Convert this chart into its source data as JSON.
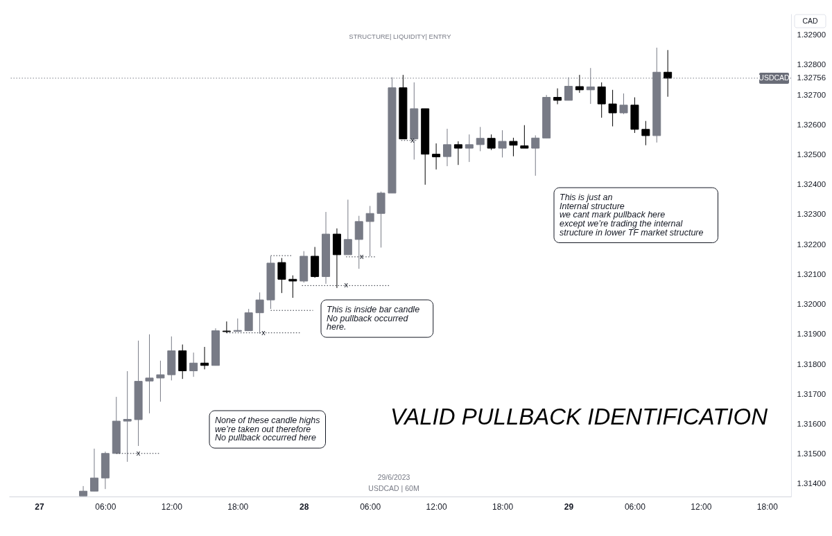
{
  "chart_data": {
    "type": "candlestick",
    "subtitle": "STRUCTURE| LIQUIDITY| ENTRY",
    "ylabel": "CAD",
    "xlim": [
      "2023-06-26T21:35",
      "2023-06-29T19:52"
    ],
    "ylim": [
      1.31358,
      1.32971
    ],
    "xticks": [
      {
        "value": "2023-06-27T00:00",
        "label": "27"
      },
      {
        "value": "2023-06-27T06:00",
        "label": "06:00"
      },
      {
        "value": "2023-06-27T12:00",
        "label": "12:00"
      },
      {
        "value": "2023-06-27T18:00",
        "label": "18:00"
      },
      {
        "value": "2023-06-28T00:00",
        "label": "28"
      },
      {
        "value": "2023-06-28T06:00",
        "label": "06:00"
      },
      {
        "value": "2023-06-28T12:00",
        "label": "12:00"
      },
      {
        "value": "2023-06-28T18:00",
        "label": "18:00"
      },
      {
        "value": "2023-06-29T00:00",
        "label": "29"
      },
      {
        "value": "2023-06-29T06:00",
        "label": "06:00"
      },
      {
        "value": "2023-06-29T12:00",
        "label": "12:00"
      },
      {
        "value": "2023-06-29T18:00",
        "label": "18:00"
      }
    ],
    "yticks": [
      {
        "value": 1.314,
        "label": "1.31400"
      },
      {
        "value": 1.315,
        "label": "1.31500"
      },
      {
        "value": 1.316,
        "label": "1.31600"
      },
      {
        "value": 1.317,
        "label": "1.31700"
      },
      {
        "value": 1.318,
        "label": "1.31800"
      },
      {
        "value": 1.319,
        "label": "1.31900"
      },
      {
        "value": 1.32,
        "label": "1.32000"
      },
      {
        "value": 1.321,
        "label": "1.32100"
      },
      {
        "value": 1.322,
        "label": "1.32200"
      },
      {
        "value": 1.323,
        "label": "1.32300"
      },
      {
        "value": 1.324,
        "label": "1.32400"
      },
      {
        "value": 1.325,
        "label": "1.32500"
      },
      {
        "value": 1.326,
        "label": "1.32600"
      },
      {
        "value": 1.327,
        "label": "1.32700"
      },
      1.32756,
      {
        "value": 1.328,
        "label": "1.32800"
      },
      {
        "value": 1.329,
        "label": "1.32900"
      }
    ],
    "series": [
      {
        "x": [
          "2023-06-27T04:00",
          "2023-06-27T05:00",
          "2023-06-27T06:00",
          "2023-06-27T07:00",
          "2023-06-27T08:00",
          "2023-06-27T09:00",
          "2023-06-27T10:00",
          "2023-06-27T11:00",
          "2023-06-27T12:00",
          "2023-06-27T13:00",
          "2023-06-27T14:00",
          "2023-06-27T15:00",
          "2023-06-27T16:00",
          "2023-06-27T17:00",
          "2023-06-27T18:00",
          "2023-06-27T19:00",
          "2023-06-27T20:00",
          "2023-06-27T21:00",
          "2023-06-27T22:00",
          "2023-06-27T23:00",
          "2023-06-28T00:00",
          "2023-06-28T01:00",
          "2023-06-28T02:00",
          "2023-06-28T03:00",
          "2023-06-28T04:00",
          "2023-06-28T05:00",
          "2023-06-28T06:00",
          "2023-06-28T07:00",
          "2023-06-28T08:00",
          "2023-06-28T09:00",
          "2023-06-28T10:00",
          "2023-06-28T11:00",
          "2023-06-28T12:00",
          "2023-06-28T13:00",
          "2023-06-28T14:00",
          "2023-06-28T15:00",
          "2023-06-28T16:00",
          "2023-06-28T17:00",
          "2023-06-28T18:00",
          "2023-06-28T19:00",
          "2023-06-28T20:00",
          "2023-06-28T21:00",
          "2023-06-28T22:00",
          "2023-06-28T23:00",
          "2023-06-29T00:00",
          "2023-06-29T01:00",
          "2023-06-29T02:00",
          "2023-06-29T03:00",
          "2023-06-29T04:00",
          "2023-06-29T05:00",
          "2023-06-29T06:00",
          "2023-06-29T07:00",
          "2023-06-29T08:00",
          "2023-06-29T09:00"
        ],
        "ohlc": [
          [
            1.3136,
            1.31393,
            1.3136,
            1.31376
          ],
          [
            1.31376,
            1.31518,
            1.31376,
            1.3142
          ],
          [
            1.3142,
            1.31508,
            1.31383,
            1.31502
          ],
          [
            1.31502,
            1.31691,
            1.31502,
            1.3161
          ],
          [
            1.3161,
            1.31777,
            1.31474,
            1.31616
          ],
          [
            1.31615,
            1.31879,
            1.31527,
            1.31743
          ],
          [
            1.31744,
            1.319,
            1.31636,
            1.31754
          ],
          [
            1.31754,
            1.31812,
            1.31675,
            1.31765
          ],
          [
            1.31765,
            1.31893,
            1.31746,
            1.31845
          ],
          [
            1.31845,
            1.31866,
            1.31751,
            1.31778
          ],
          [
            1.31778,
            1.31839,
            1.31758,
            1.31804
          ],
          [
            1.31804,
            1.31858,
            1.31783,
            1.31796
          ],
          [
            1.31796,
            1.3192,
            1.31796,
            1.31912
          ],
          [
            1.31911,
            1.31943,
            1.31904,
            1.31909
          ],
          [
            1.3191,
            1.31953,
            1.31909,
            1.31913
          ],
          [
            1.31912,
            1.31985,
            1.31912,
            1.31972
          ],
          [
            1.31972,
            1.3204,
            1.31902,
            1.32015
          ],
          [
            1.32015,
            1.32161,
            1.31985,
            1.32138
          ],
          [
            1.3214,
            1.32155,
            1.32038,
            1.32084
          ],
          [
            1.32084,
            1.32097,
            1.32022,
            1.32078
          ],
          [
            1.32078,
            1.32178,
            1.32073,
            1.32161
          ],
          [
            1.32161,
            1.32192,
            1.32089,
            1.32093
          ],
          [
            1.32093,
            1.32309,
            1.32069,
            1.32235
          ],
          [
            1.32235,
            1.32254,
            1.32055,
            1.32166
          ],
          [
            1.32166,
            1.3235,
            1.32166,
            1.32217
          ],
          [
            1.32217,
            1.32296,
            1.32119,
            1.32277
          ],
          [
            1.32277,
            1.32329,
            1.32161,
            1.32304
          ],
          [
            1.32304,
            1.32377,
            1.3219,
            1.32372
          ],
          [
            1.32372,
            1.32759,
            1.32372,
            1.32724
          ],
          [
            1.32724,
            1.32767,
            1.32553,
            1.32553
          ],
          [
            1.32553,
            1.32742,
            1.32484,
            1.32654
          ],
          [
            1.32654,
            1.32654,
            1.324,
            1.32502
          ],
          [
            1.32502,
            1.32538,
            1.32451,
            1.32493
          ],
          [
            1.32494,
            1.32587,
            1.32462,
            1.32534
          ],
          [
            1.32534,
            1.32545,
            1.32466,
            1.32522
          ],
          [
            1.32522,
            1.32568,
            1.32476,
            1.32534
          ],
          [
            1.32534,
            1.32593,
            1.32512,
            1.32555
          ],
          [
            1.32555,
            1.32568,
            1.32516,
            1.32522
          ],
          [
            1.32522,
            1.32582,
            1.32491,
            1.32545
          ],
          [
            1.32545,
            1.32557,
            1.32495,
            1.32532
          ],
          [
            1.3253,
            1.32599,
            1.32522,
            1.32522
          ],
          [
            1.32522,
            1.32565,
            1.3243,
            1.32556
          ],
          [
            1.32556,
            1.327,
            1.32556,
            1.32692
          ],
          [
            1.32692,
            1.32722,
            1.32669,
            1.32682
          ],
          [
            1.32682,
            1.32759,
            1.32682,
            1.32729
          ],
          [
            1.32728,
            1.32767,
            1.32707,
            1.32717
          ],
          [
            1.32717,
            1.3279,
            1.3267,
            1.32727
          ],
          [
            1.32727,
            1.32742,
            1.32624,
            1.3267
          ],
          [
            1.3267,
            1.32717,
            1.32595,
            1.3264
          ],
          [
            1.3264,
            1.32705,
            1.32636,
            1.32666
          ],
          [
            1.32666,
            1.32692,
            1.32573,
            1.32585
          ],
          [
            1.32585,
            1.32613,
            1.32532,
            1.32564
          ],
          [
            1.32564,
            1.32858,
            1.32541,
            1.32776
          ],
          [
            1.32776,
            1.3285,
            1.32694,
            1.32756
          ]
        ],
        "colors": [
          "#787b86",
          "#787b86",
          "#787b86",
          "#787b86",
          "#787b86",
          "#787b86",
          "#787b86",
          "#787b86",
          "#787b86",
          "#000000",
          "#787b86",
          "#000000",
          "#787b86",
          "#000000",
          "#787b86",
          "#787b86",
          "#787b86",
          "#787b86",
          "#000000",
          "#000000",
          "#787b86",
          "#000000",
          "#787b86",
          "#000000",
          "#787b86",
          "#787b86",
          "#787b86",
          "#787b86",
          "#787b86",
          "#000000",
          "#787b86",
          "#000000",
          "#000000",
          "#787b86",
          "#000000",
          "#787b86",
          "#787b86",
          "#000000",
          "#787b86",
          "#000000",
          "#000000",
          "#787b86",
          "#787b86",
          "#000000",
          "#787b86",
          "#000000",
          "#787b86",
          "#000000",
          "#000000",
          "#787b86",
          "#000000",
          "#000000",
          "#787b86",
          "#000000"
        ]
      },
      {
        "type": "line",
        "x": [
          "2023-06-27T07:00",
          "2023-06-27T11:00"
        ],
        "values": [
          1.31502,
          1.31502
        ],
        "color": "#2a2e39",
        "line_style": "dotted"
      },
      {
        "type": "line",
        "x": [
          "2023-06-27T17:00",
          "2023-06-27T23:40"
        ],
        "values": [
          1.31905,
          1.31905
        ],
        "color": "#2a2e39",
        "line_style": "dotted"
      },
      {
        "type": "line",
        "x": [
          "2023-06-27T21:00",
          "2023-06-27T23:00"
        ],
        "values": [
          1.32163,
          1.32163
        ],
        "color": "#2a2e39",
        "line_style": "dotted"
      },
      {
        "type": "line",
        "x": [
          "2023-06-27T21:00",
          "2023-06-28T00:50"
        ],
        "values": [
          1.3198,
          1.3198
        ],
        "color": "#2a2e39",
        "line_style": "dotted"
      },
      {
        "type": "line",
        "x": [
          "2023-06-27T23:50",
          "2023-06-28T07:50"
        ],
        "values": [
          1.32063,
          1.32063
        ],
        "color": "#2a2e39",
        "line_style": "dotted"
      },
      {
        "type": "line",
        "x": [
          "2023-06-28T03:50",
          "2023-06-28T06:30"
        ],
        "values": [
          1.32159,
          1.32159
        ],
        "color": "#2a2e39",
        "line_style": "dotted"
      },
      {
        "type": "line",
        "x": [
          "2023-06-28T08:50",
          "2023-06-28T10:20"
        ],
        "values": [
          1.32548,
          1.32548
        ],
        "color": "#2a2e39",
        "line_style": "dotted"
      }
    ],
    "ref_lines": [
      {
        "axis": "y",
        "value": 1.32756,
        "label": "USDCAD",
        "color": "#787b86",
        "line_style": "dotted"
      }
    ],
    "annotations": [
      "VALID PULLBACK IDENTIFICATION",
      "29/6/2023",
      "USDCAD | 60M",
      "None of these candle highs\nwe’re taken out therefore\nNo pullback occurred here",
      "This is inside bar candle\nNo pullback occurred\nhere.",
      "This is just an\nInternal structure\nwe cant mark pullback here\nexcept we’re trading the internal\nstructure in lower TF market structure",
      {
        "text": "x",
        "x": "2023-06-27T09:00",
        "y": 1.31502
      },
      {
        "text": "x",
        "x": "2023-06-27T20:20",
        "y": 1.31905
      },
      {
        "text": "x",
        "x": "2023-06-28T03:50",
        "y": 1.32063
      },
      {
        "text": "x",
        "x": "2023-06-28T05:15",
        "y": 1.32159
      },
      {
        "text": "x",
        "x": "2023-06-28T09:50",
        "y": 1.32548
      }
    ]
  }
}
